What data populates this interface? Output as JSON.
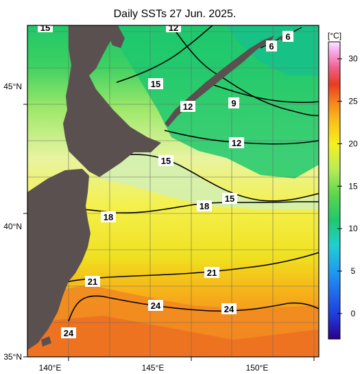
{
  "title": "Daily SSTs 27 Jun. 2025.",
  "colorbar": {
    "unit": "[°C]",
    "min": -3,
    "max": 32,
    "ticks": [
      "0",
      "5",
      "10",
      "15",
      "20",
      "25",
      "30"
    ],
    "stops": [
      {
        "v": -3,
        "c": "#2b0090"
      },
      {
        "v": 0,
        "c": "#1f3fe0"
      },
      {
        "v": 5,
        "c": "#1f9bf0"
      },
      {
        "v": 8,
        "c": "#22cfd0"
      },
      {
        "v": 11,
        "c": "#20c870"
      },
      {
        "v": 14,
        "c": "#5cd64a"
      },
      {
        "v": 17,
        "c": "#b8ec58"
      },
      {
        "v": 20,
        "c": "#f6f020"
      },
      {
        "v": 23,
        "c": "#f8b818"
      },
      {
        "v": 25,
        "c": "#f48020"
      },
      {
        "v": 27,
        "c": "#e83c20"
      },
      {
        "v": 29,
        "c": "#f06090"
      },
      {
        "v": 31,
        "c": "#f8b0f0"
      },
      {
        "v": 32,
        "c": "#fce8ff"
      }
    ]
  },
  "axes": {
    "lon_labels": [
      "140°E",
      "145°E",
      "150°E"
    ],
    "lat_labels": [
      "45°N",
      "40°N",
      "35°N"
    ]
  },
  "contour_labels": [
    "15",
    "12",
    "6",
    "6",
    "15",
    "12",
    "9",
    "12",
    "15",
    "15",
    "18",
    "18",
    "21",
    "21",
    "24",
    "24",
    "24"
  ],
  "colors": {
    "land": "#5a5050",
    "grid": "#6a6a6a",
    "contour": "#000000"
  }
}
